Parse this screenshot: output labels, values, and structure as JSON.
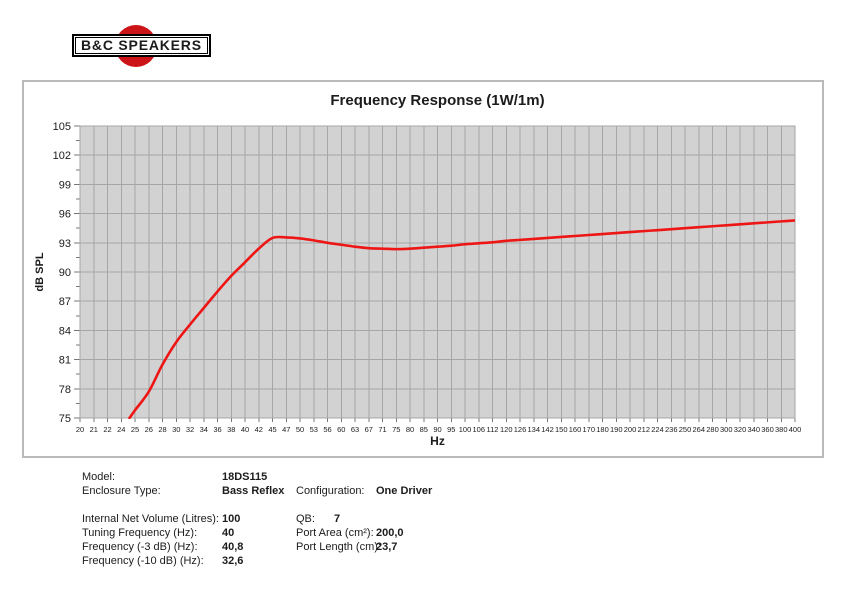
{
  "logo": {
    "text": "B&C SPEAKERS"
  },
  "colors": {
    "curve": "#ee1515",
    "logo_red": "#cc1317",
    "plot_bg": "#d2d2d2",
    "grid": "#a6a6a6",
    "tick": "#777777",
    "panel_border": "#bababa"
  },
  "chart_data": {
    "type": "line",
    "title": "Frequency Response (1W/1m)",
    "xlabel": "Hz",
    "ylabel": "dB SPL",
    "grid": true,
    "legend": "none",
    "x_scale": "logarithmic (ticks evenly spaced)",
    "x_ticks": [
      "20",
      "21",
      "22",
      "24",
      "25",
      "26",
      "28",
      "30",
      "32",
      "34",
      "36",
      "38",
      "40",
      "42",
      "45",
      "47",
      "50",
      "53",
      "56",
      "60",
      "63",
      "67",
      "71",
      "75",
      "80",
      "85",
      "90",
      "95",
      "100",
      "106",
      "112",
      "120",
      "126",
      "134",
      "142",
      "150",
      "160",
      "170",
      "180",
      "190",
      "200",
      "212",
      "224",
      "236",
      "250",
      "264",
      "280",
      "300",
      "320",
      "340",
      "360",
      "380",
      "400"
    ],
    "y_ticks": [
      105,
      102,
      99,
      96,
      93,
      90,
      87,
      84,
      81,
      78,
      75
    ],
    "ylim": [
      75,
      105
    ],
    "xlim": [
      20,
      400
    ],
    "series": [
      {
        "name": "SPL (1W/1m)",
        "color": "#ee1515",
        "points": [
          [
            24.6,
            75.0
          ],
          [
            25,
            75.8
          ],
          [
            26,
            77.7
          ],
          [
            28,
            80.5
          ],
          [
            30,
            82.8
          ],
          [
            32,
            84.6
          ],
          [
            34,
            86.3
          ],
          [
            36,
            88.0
          ],
          [
            38,
            89.6
          ],
          [
            40,
            91.0
          ],
          [
            42,
            92.4
          ],
          [
            45,
            93.5
          ],
          [
            47,
            93.55
          ],
          [
            50,
            93.45
          ],
          [
            53,
            93.25
          ],
          [
            56,
            93.0
          ],
          [
            60,
            92.8
          ],
          [
            63,
            92.6
          ],
          [
            67,
            92.45
          ],
          [
            71,
            92.4
          ],
          [
            75,
            92.35
          ],
          [
            80,
            92.4
          ],
          [
            85,
            92.5
          ],
          [
            90,
            92.6
          ],
          [
            95,
            92.7
          ],
          [
            100,
            92.85
          ],
          [
            106,
            92.95
          ],
          [
            112,
            93.05
          ],
          [
            120,
            93.2
          ],
          [
            126,
            93.3
          ],
          [
            134,
            93.4
          ],
          [
            142,
            93.5
          ],
          [
            150,
            93.6
          ],
          [
            160,
            93.7
          ],
          [
            170,
            93.8
          ],
          [
            180,
            93.9
          ],
          [
            190,
            94.0
          ],
          [
            200,
            94.1
          ],
          [
            212,
            94.2
          ],
          [
            224,
            94.3
          ],
          [
            236,
            94.4
          ],
          [
            250,
            94.5
          ],
          [
            264,
            94.6
          ],
          [
            280,
            94.7
          ],
          [
            300,
            94.8
          ],
          [
            320,
            94.9
          ],
          [
            340,
            95.0
          ],
          [
            360,
            95.1
          ],
          [
            380,
            95.2
          ],
          [
            400,
            95.3
          ]
        ]
      }
    ]
  },
  "specs": {
    "left": [
      {
        "label": "Model:",
        "value": "18DS115"
      },
      {
        "label": "Enclosure Type:",
        "value": "Bass Reflex"
      },
      {
        "label": "Internal Net Volume (Litres):",
        "value": "100"
      },
      {
        "label": "Tuning Frequency (Hz):",
        "value": "40"
      },
      {
        "label": "Frequency (-3 dB) (Hz):",
        "value": "40,8"
      },
      {
        "label": "Frequency (-10 dB) (Hz):",
        "value": "32,6"
      }
    ],
    "right": [
      {
        "label": "Configuration:",
        "value": "One Driver"
      },
      {
        "label": "QB:",
        "value": "7"
      },
      {
        "label": "Port Area (cm²):",
        "value": "200,0"
      },
      {
        "label": "Port Length (cm):",
        "value": "23,7"
      }
    ]
  }
}
